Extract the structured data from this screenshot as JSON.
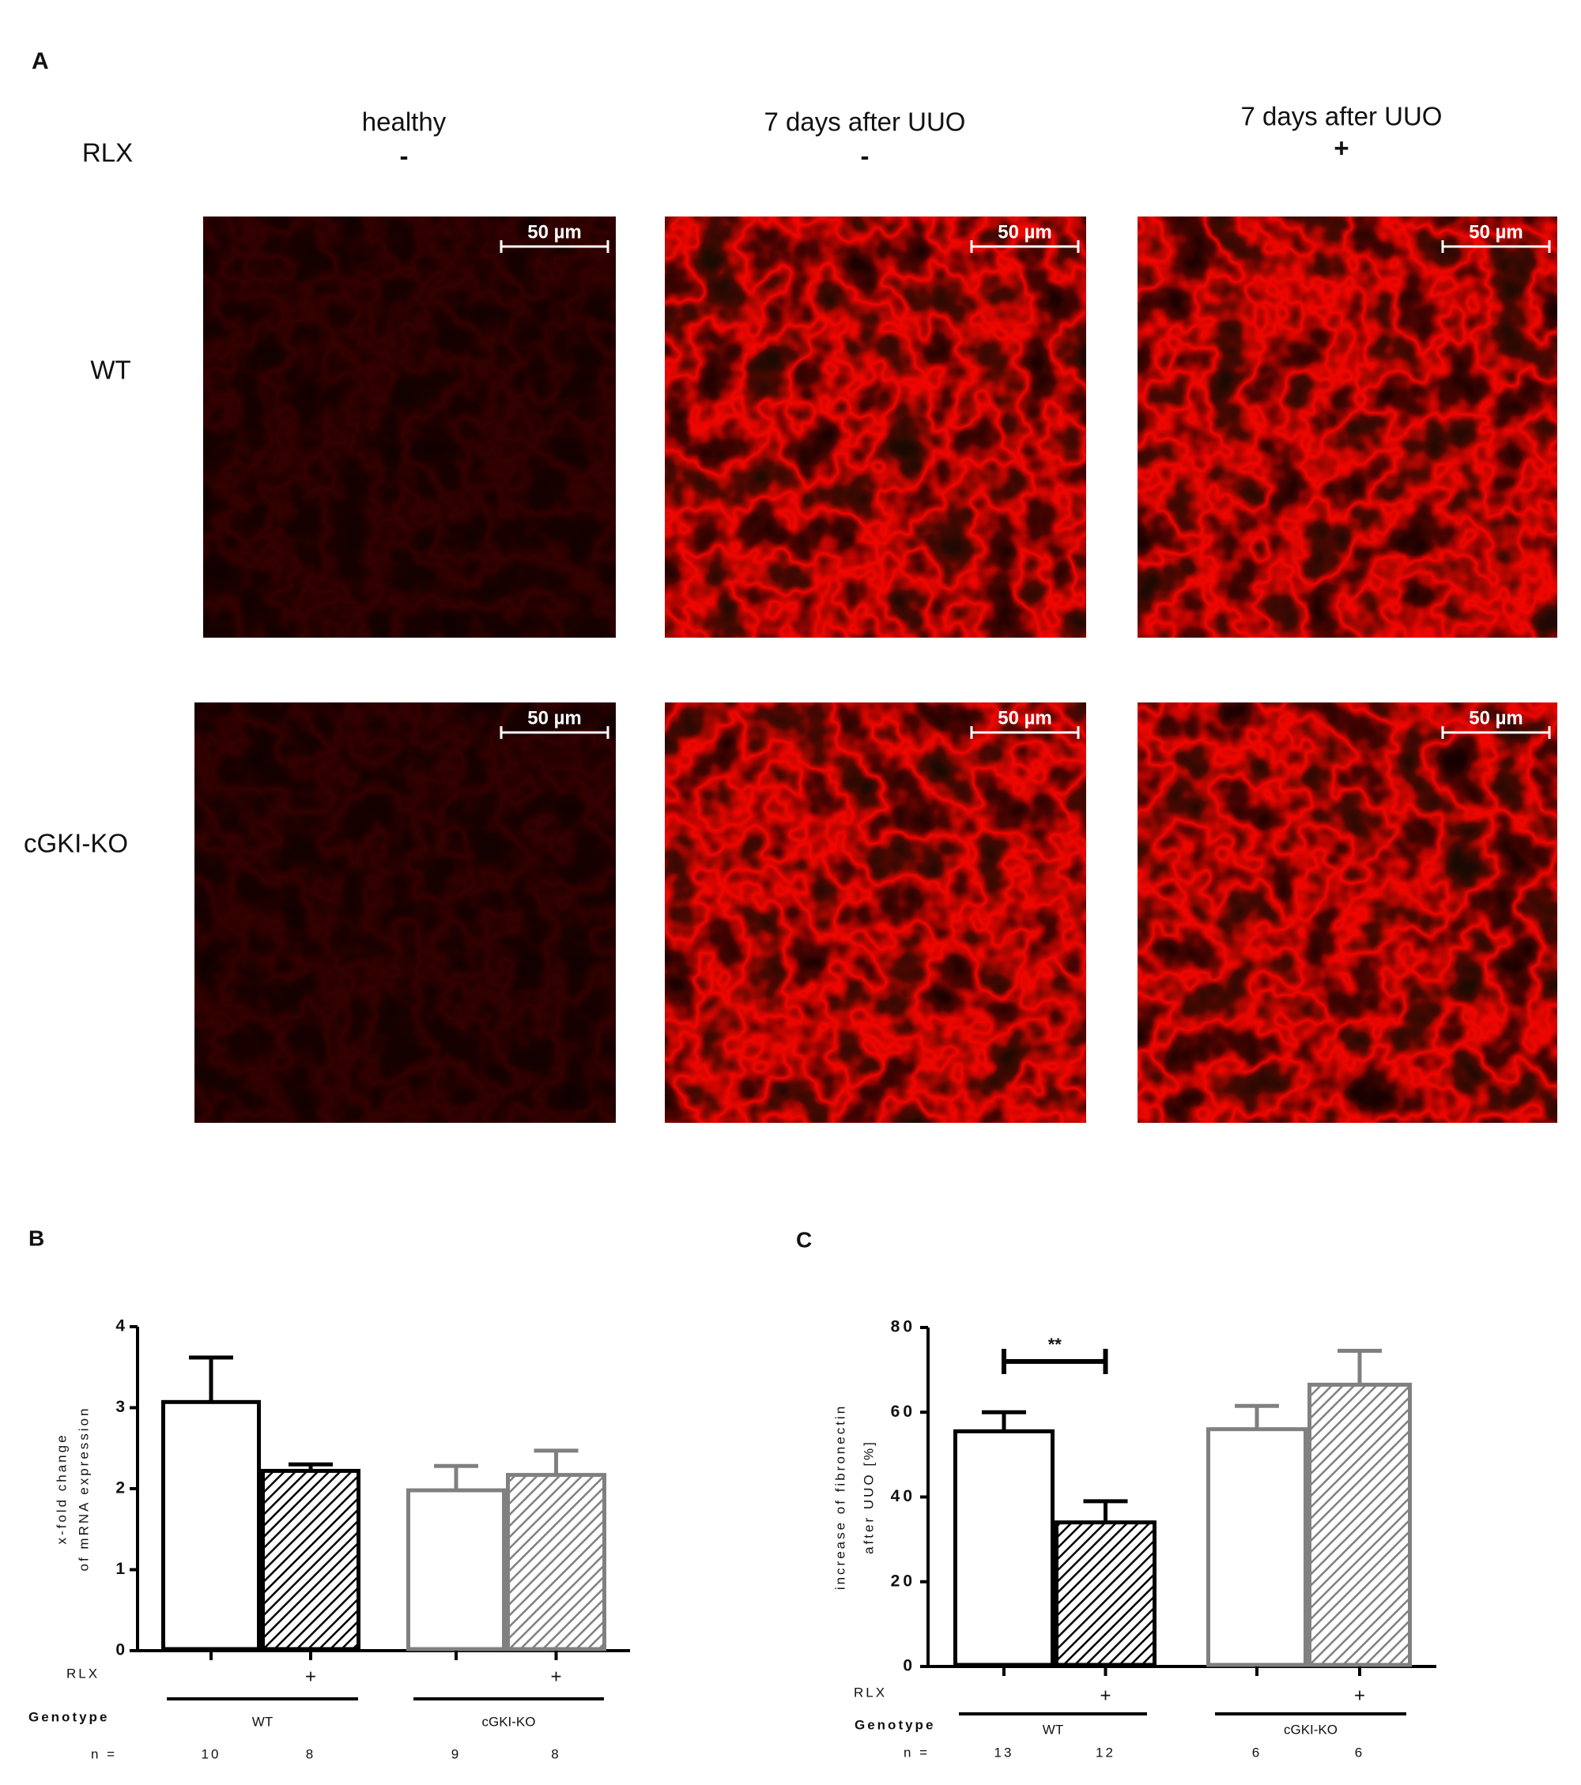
{
  "panel_a": {
    "label": "A",
    "row_header": "RLX",
    "columns": [
      {
        "title": "healthy",
        "rlx": "-"
      },
      {
        "title": "7 days after UUO",
        "rlx": "-"
      },
      {
        "title": "7 days after UUO",
        "rlx": "+"
      }
    ],
    "rows": [
      "WT",
      "cGKI-KO"
    ],
    "scale_bar": "50 µm"
  },
  "chart_data": [
    {
      "type": "bar",
      "panel_label": "B",
      "ylabel": [
        "x-fold change",
        "of mRNA expression"
      ],
      "categories": [
        null,
        "+",
        null,
        "+"
      ],
      "values": [
        3.07,
        2.22,
        1.98,
        2.17
      ],
      "errors": [
        0.55,
        0.08,
        0.3,
        0.3
      ],
      "colors": [
        "#000000",
        "#000000",
        "#808080",
        "#808080"
      ],
      "hatched": [
        false,
        true,
        false,
        true
      ],
      "ylim": [
        0,
        4
      ],
      "yticks": [
        0,
        1,
        2,
        3,
        4
      ],
      "row_labels": {
        "treatment": "RLX",
        "genotype": "Genotype",
        "n": "n ="
      },
      "group_labels": [
        "WT",
        "cGKI-KO"
      ],
      "n": [
        10,
        8,
        9,
        8
      ]
    },
    {
      "type": "bar",
      "panel_label": "C",
      "ylabel": [
        "increase of fibronectin",
        "after UUO [%]"
      ],
      "categories": [
        null,
        "+",
        null,
        "+"
      ],
      "values": [
        55.5,
        34,
        56,
        66.5
      ],
      "errors": [
        4.5,
        5,
        5.5,
        8
      ],
      "colors": [
        "#000000",
        "#000000",
        "#808080",
        "#808080"
      ],
      "hatched": [
        false,
        true,
        false,
        true
      ],
      "ylim": [
        0,
        80
      ],
      "yticks": [
        0,
        20,
        40,
        60,
        80
      ],
      "significance": {
        "label": "**",
        "between": [
          0,
          1
        ]
      },
      "row_labels": {
        "treatment": "RLX",
        "genotype": "Genotype",
        "n": "n ="
      },
      "group_labels": [
        "WT",
        "cGKI-KO"
      ],
      "n": [
        13,
        12,
        6,
        6
      ]
    }
  ]
}
